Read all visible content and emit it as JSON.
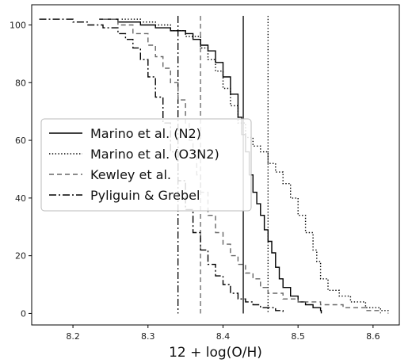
{
  "chart_data": {
    "type": "line",
    "title": "",
    "xlabel": "12 + log(O/H)",
    "ylabel": "",
    "xlim": [
      8.145,
      8.635
    ],
    "ylim": [
      -4,
      107
    ],
    "x_ticks": [
      "8.2",
      "8.3",
      "8.4",
      "8.5",
      "8.6"
    ],
    "x_tick_values": [
      8.2,
      8.3,
      8.4,
      8.5,
      8.6
    ],
    "y_ticks": [
      "0",
      "20",
      "40",
      "60",
      "80",
      "100"
    ],
    "y_tick_values": [
      0,
      20,
      40,
      60,
      80,
      100
    ],
    "grid": false,
    "legend_position": "center-left",
    "series": [
      {
        "name": "Marino et al. (N2)",
        "style": "solid",
        "color": "#000000",
        "vline": 8.427,
        "points": [
          [
            8.235,
            102
          ],
          [
            8.26,
            101
          ],
          [
            8.29,
            100
          ],
          [
            8.31,
            99
          ],
          [
            8.33,
            98
          ],
          [
            8.35,
            97
          ],
          [
            8.36,
            95
          ],
          [
            8.37,
            93
          ],
          [
            8.38,
            91
          ],
          [
            8.39,
            87
          ],
          [
            8.4,
            82
          ],
          [
            8.41,
            76
          ],
          [
            8.42,
            68
          ],
          [
            8.425,
            62
          ],
          [
            8.43,
            56
          ],
          [
            8.435,
            48
          ],
          [
            8.44,
            42
          ],
          [
            8.445,
            38
          ],
          [
            8.45,
            34
          ],
          [
            8.455,
            29
          ],
          [
            8.46,
            25
          ],
          [
            8.465,
            21
          ],
          [
            8.47,
            16
          ],
          [
            8.475,
            12
          ],
          [
            8.48,
            9
          ],
          [
            8.49,
            6
          ],
          [
            8.5,
            4
          ],
          [
            8.51,
            3
          ],
          [
            8.52,
            2
          ],
          [
            8.53,
            1
          ],
          [
            8.531,
            0
          ]
        ]
      },
      {
        "name": "Marino et al. (O3N2)",
        "style": "dotted",
        "color": "#000000",
        "vline": 8.46,
        "points": [
          [
            8.265,
            102
          ],
          [
            8.29,
            101
          ],
          [
            8.31,
            100
          ],
          [
            8.33,
            98
          ],
          [
            8.35,
            96
          ],
          [
            8.37,
            92
          ],
          [
            8.38,
            88
          ],
          [
            8.39,
            84
          ],
          [
            8.4,
            78
          ],
          [
            8.41,
            72
          ],
          [
            8.42,
            66
          ],
          [
            8.43,
            61
          ],
          [
            8.44,
            58
          ],
          [
            8.45,
            56
          ],
          [
            8.46,
            52
          ],
          [
            8.47,
            49
          ],
          [
            8.48,
            45
          ],
          [
            8.49,
            40
          ],
          [
            8.5,
            34
          ],
          [
            8.51,
            28
          ],
          [
            8.52,
            22
          ],
          [
            8.525,
            18
          ],
          [
            8.53,
            12
          ],
          [
            8.54,
            8
          ],
          [
            8.555,
            6
          ],
          [
            8.57,
            4
          ],
          [
            8.59,
            2
          ],
          [
            8.61,
            1
          ],
          [
            8.62,
            0
          ]
        ]
      },
      {
        "name": "Kewley et al.",
        "style": "dashed",
        "color": "#666666",
        "vline": 8.37,
        "points": [
          [
            8.24,
            102
          ],
          [
            8.26,
            100
          ],
          [
            8.28,
            97
          ],
          [
            8.3,
            93
          ],
          [
            8.31,
            89
          ],
          [
            8.32,
            85
          ],
          [
            8.33,
            80
          ],
          [
            8.34,
            74
          ],
          [
            8.35,
            66
          ],
          [
            8.355,
            60
          ],
          [
            8.36,
            55
          ],
          [
            8.365,
            48
          ],
          [
            8.37,
            42
          ],
          [
            8.38,
            34
          ],
          [
            8.39,
            28
          ],
          [
            8.4,
            24
          ],
          [
            8.41,
            20
          ],
          [
            8.42,
            17
          ],
          [
            8.43,
            14
          ],
          [
            8.44,
            12
          ],
          [
            8.45,
            9
          ],
          [
            8.46,
            7
          ],
          [
            8.48,
            5
          ],
          [
            8.5,
            4
          ],
          [
            8.53,
            3
          ],
          [
            8.56,
            2
          ],
          [
            8.59,
            1
          ],
          [
            8.61,
            0
          ]
        ]
      },
      {
        "name": "Pyliguin & Grebel",
        "style": "dashdot",
        "color": "#000000",
        "vline": 8.34,
        "points": [
          [
            8.155,
            102
          ],
          [
            8.18,
            102
          ],
          [
            8.2,
            101
          ],
          [
            8.22,
            100
          ],
          [
            8.24,
            99
          ],
          [
            8.26,
            97
          ],
          [
            8.27,
            95
          ],
          [
            8.28,
            92
          ],
          [
            8.29,
            88
          ],
          [
            8.3,
            82
          ],
          [
            8.31,
            75
          ],
          [
            8.32,
            66
          ],
          [
            8.33,
            56
          ],
          [
            8.34,
            46
          ],
          [
            8.35,
            36
          ],
          [
            8.36,
            28
          ],
          [
            8.37,
            22
          ],
          [
            8.38,
            17
          ],
          [
            8.39,
            13
          ],
          [
            8.4,
            10
          ],
          [
            8.41,
            7
          ],
          [
            8.42,
            5
          ],
          [
            8.43,
            4
          ],
          [
            8.44,
            3
          ],
          [
            8.45,
            2
          ],
          [
            8.47,
            1
          ],
          [
            8.48,
            0
          ]
        ]
      }
    ]
  },
  "colors": {
    "frame": "#000000",
    "legend_border": "#bbbbbb",
    "background": "#ffffff"
  }
}
